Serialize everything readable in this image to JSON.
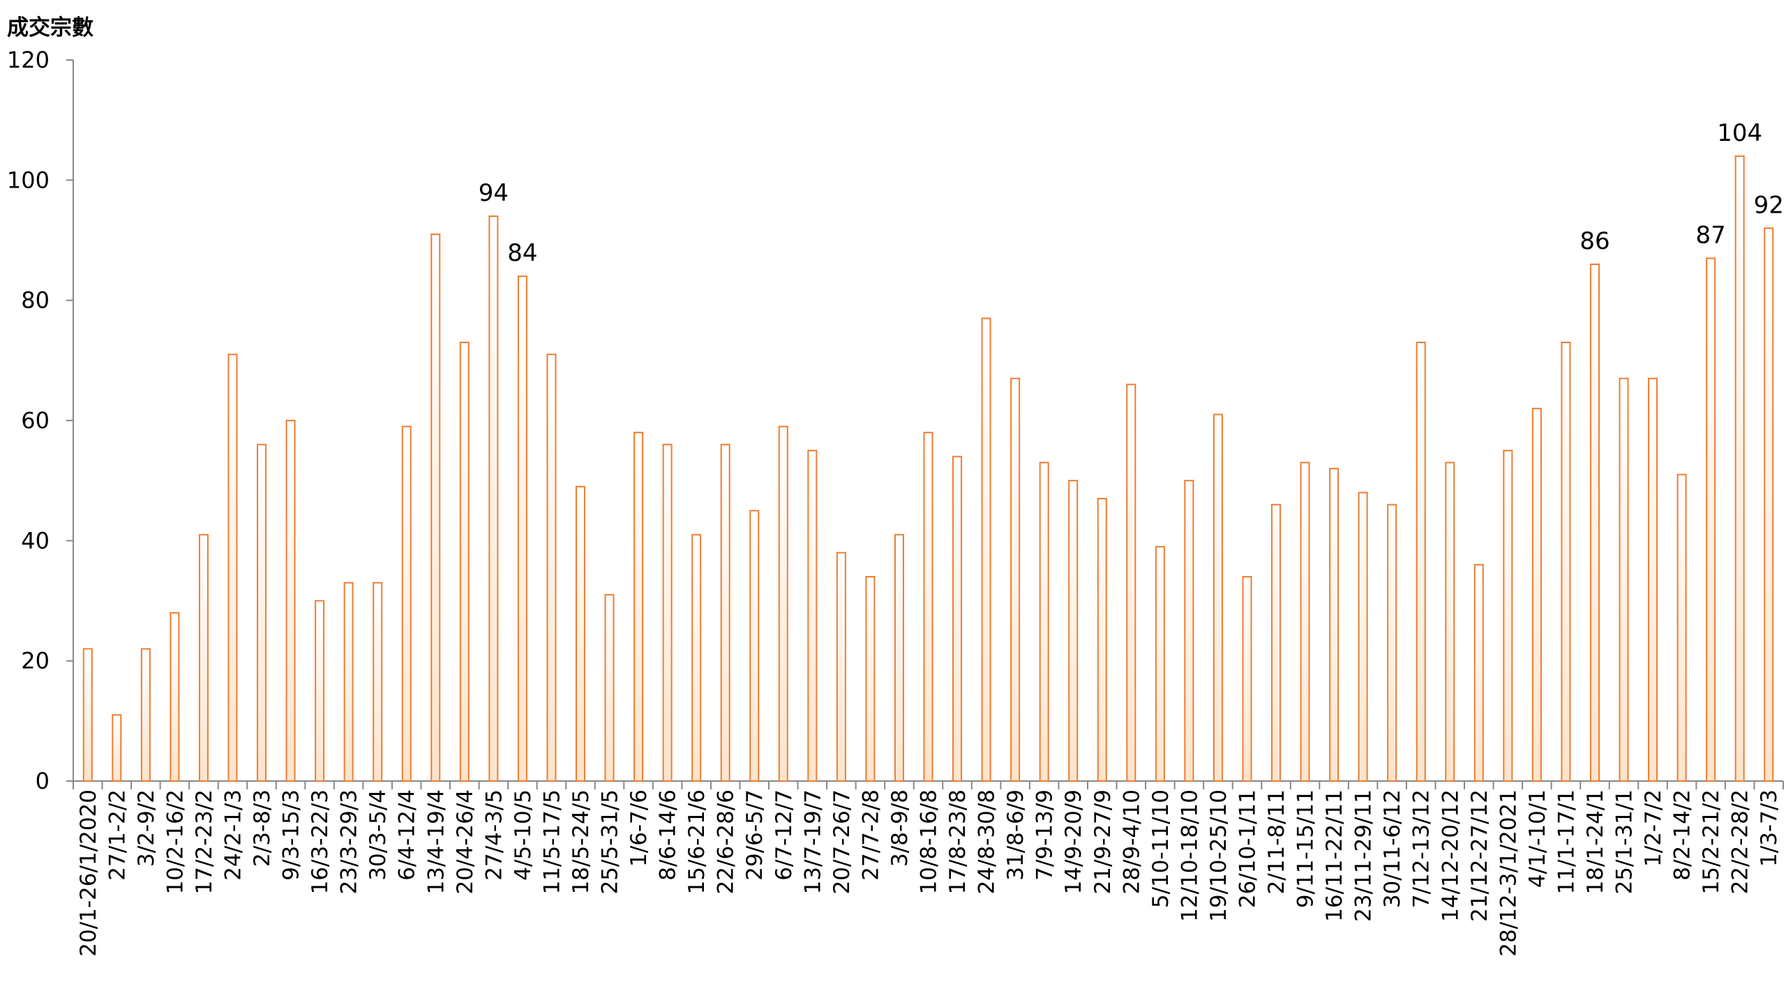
{
  "chart_data": {
    "type": "bar",
    "ylabel": "成交宗數",
    "ylim": [
      0,
      120
    ],
    "yticks": [
      0,
      20,
      40,
      60,
      80,
      100,
      120
    ],
    "grid": false,
    "categories": [
      "20/1-26/1/2020",
      "27/1-2/2",
      "3/2-9/2",
      "10/2-16/2",
      "17/2-23/2",
      "24/2-1/3",
      "2/3-8/3",
      "9/3-15/3",
      "16/3-22/3",
      "23/3-29/3",
      "30/3-5/4",
      "6/4-12/4",
      "13/4-19/4",
      "20/4-26/4",
      "27/4-3/5",
      "4/5-10/5",
      "11/5-17/5",
      "18/5-24/5",
      "25/5-31/5",
      "1/6-7/6",
      "8/6-14/6",
      "15/6-21/6",
      "22/6-28/6",
      "29/6-5/7",
      "6/7-12/7",
      "13/7-19/7",
      "20/7-26/7",
      "27/7-2/8",
      "3/8-9/8",
      "10/8-16/8",
      "17/8-23/8",
      "24/8-30/8",
      "31/8-6/9",
      "7/9-13/9",
      "14/9-20/9",
      "21/9-27/9",
      "28/9-4/10",
      "5/10-11/10",
      "12/10-18/10",
      "19/10-25/10",
      "26/10-1/11",
      "2/11-8/11",
      "9/11-15/11",
      "16/11-22/11",
      "23/11-29/11",
      "30/11-6/12",
      "7/12-13/12",
      "14/12-20/12",
      "21/12-27/12",
      "28/12-3/1/2021",
      "4/1/-10/1",
      "11/1-17/1",
      "18/1-24/1",
      "25/1-31/1",
      "1/2-7/2",
      "8/2-14/2",
      "15/2-21/2",
      "22/2-28/2",
      "1/3-7/3"
    ],
    "values": [
      22,
      11,
      22,
      28,
      41,
      71,
      56,
      60,
      30,
      33,
      33,
      59,
      91,
      73,
      94,
      84,
      71,
      49,
      31,
      58,
      56,
      41,
      56,
      45,
      59,
      55,
      38,
      34,
      41,
      58,
      54,
      77,
      67,
      53,
      50,
      47,
      66,
      39,
      50,
      61,
      34,
      46,
      53,
      52,
      48,
      46,
      73,
      53,
      36,
      55,
      62,
      73,
      86,
      67,
      67,
      51,
      87,
      104,
      92
    ],
    "data_labels": [
      {
        "index": 14,
        "text": "94"
      },
      {
        "index": 15,
        "text": "84"
      },
      {
        "index": 52,
        "text": "86"
      },
      {
        "index": 56,
        "text": "87"
      },
      {
        "index": 57,
        "text": "104"
      },
      {
        "index": 58,
        "text": "92"
      }
    ],
    "colors": {
      "bar_stroke": "#ED7D31",
      "bar_fill_top": "#FFFFFF",
      "bar_fill_bottom": "#FCE4CC",
      "axis": "#888888"
    }
  }
}
